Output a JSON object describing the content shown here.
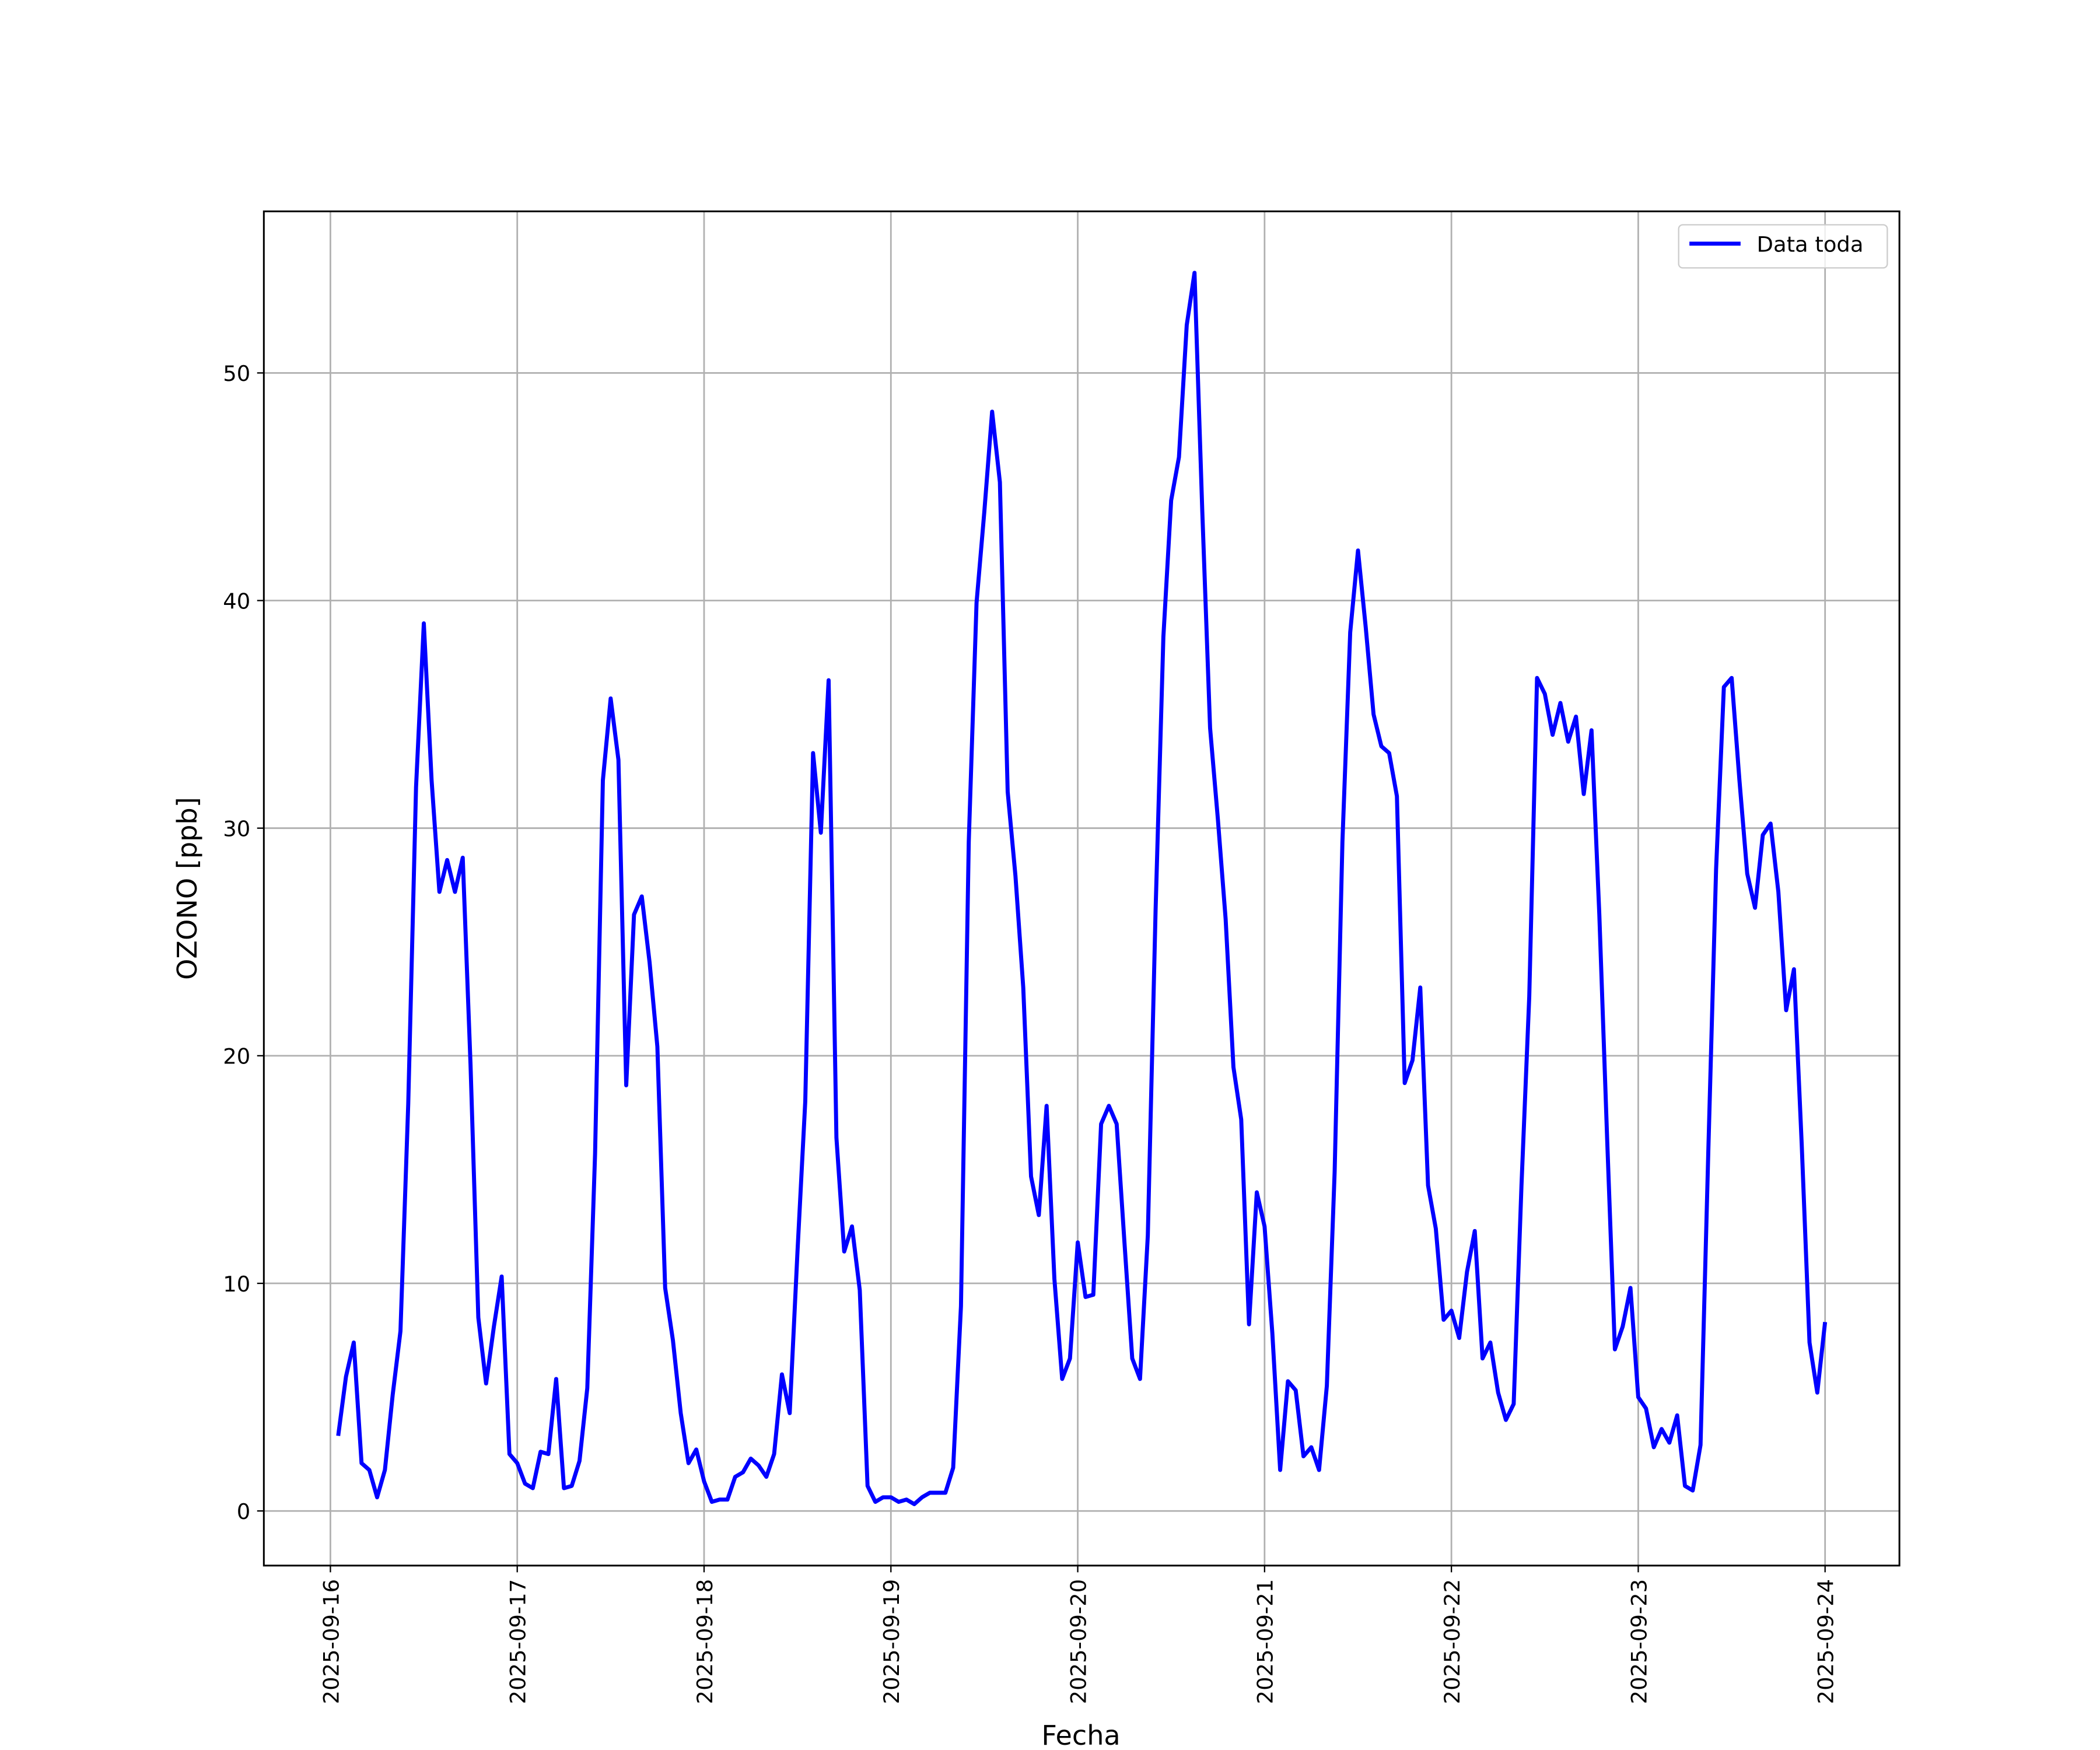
{
  "chart_data": {
    "type": "line",
    "xlabel": "Fecha",
    "ylabel": "OZONO [ppb]",
    "x": [
      "2025-09-16 01:00",
      "2025-09-16 02:00",
      "2025-09-16 03:00",
      "2025-09-16 04:00",
      "2025-09-16 05:00",
      "2025-09-16 06:00",
      "2025-09-16 07:00",
      "2025-09-16 08:00",
      "2025-09-16 09:00",
      "2025-09-16 10:00",
      "2025-09-16 11:00",
      "2025-09-16 12:00",
      "2025-09-16 13:00",
      "2025-09-16 14:00",
      "2025-09-16 15:00",
      "2025-09-16 16:00",
      "2025-09-16 17:00",
      "2025-09-16 18:00",
      "2025-09-16 19:00",
      "2025-09-16 20:00",
      "2025-09-16 21:00",
      "2025-09-16 22:00",
      "2025-09-16 23:00",
      "2025-09-17 00:00",
      "2025-09-17 01:00",
      "2025-09-17 02:00",
      "2025-09-17 03:00",
      "2025-09-17 04:00",
      "2025-09-17 05:00",
      "2025-09-17 06:00",
      "2025-09-17 07:00",
      "2025-09-17 08:00",
      "2025-09-17 09:00",
      "2025-09-17 10:00",
      "2025-09-17 11:00",
      "2025-09-17 12:00",
      "2025-09-17 13:00",
      "2025-09-17 14:00",
      "2025-09-17 15:00",
      "2025-09-17 16:00",
      "2025-09-17 17:00",
      "2025-09-17 18:00",
      "2025-09-17 19:00",
      "2025-09-17 20:00",
      "2025-09-17 21:00",
      "2025-09-17 22:00",
      "2025-09-17 23:00",
      "2025-09-18 00:00",
      "2025-09-18 01:00",
      "2025-09-18 02:00",
      "2025-09-18 03:00",
      "2025-09-18 04:00",
      "2025-09-18 05:00",
      "2025-09-18 06:00",
      "2025-09-18 07:00",
      "2025-09-18 08:00",
      "2025-09-18 09:00",
      "2025-09-18 10:00",
      "2025-09-18 11:00",
      "2025-09-18 12:00",
      "2025-09-18 13:00",
      "2025-09-18 14:00",
      "2025-09-18 15:00",
      "2025-09-18 16:00",
      "2025-09-18 17:00",
      "2025-09-18 18:00",
      "2025-09-18 19:00",
      "2025-09-18 20:00",
      "2025-09-18 21:00",
      "2025-09-18 22:00",
      "2025-09-18 23:00",
      "2025-09-19 00:00",
      "2025-09-19 01:00",
      "2025-09-19 02:00",
      "2025-09-19 03:00",
      "2025-09-19 04:00",
      "2025-09-19 05:00",
      "2025-09-19 06:00",
      "2025-09-19 07:00",
      "2025-09-19 08:00",
      "2025-09-19 09:00",
      "2025-09-19 10:00",
      "2025-09-19 11:00",
      "2025-09-19 12:00",
      "2025-09-19 13:00",
      "2025-09-19 14:00",
      "2025-09-19 15:00",
      "2025-09-19 16:00",
      "2025-09-19 17:00",
      "2025-09-19 18:00",
      "2025-09-19 19:00",
      "2025-09-19 20:00",
      "2025-09-19 21:00",
      "2025-09-19 22:00",
      "2025-09-19 23:00",
      "2025-09-20 00:00",
      "2025-09-20 01:00",
      "2025-09-20 02:00",
      "2025-09-20 03:00",
      "2025-09-20 04:00",
      "2025-09-20 05:00",
      "2025-09-20 06:00",
      "2025-09-20 07:00",
      "2025-09-20 08:00",
      "2025-09-20 09:00",
      "2025-09-20 10:00",
      "2025-09-20 11:00",
      "2025-09-20 12:00",
      "2025-09-20 13:00",
      "2025-09-20 14:00",
      "2025-09-20 15:00",
      "2025-09-20 16:00",
      "2025-09-20 17:00",
      "2025-09-20 18:00",
      "2025-09-20 19:00",
      "2025-09-20 20:00",
      "2025-09-20 21:00",
      "2025-09-20 22:00",
      "2025-09-20 23:00",
      "2025-09-21 00:00",
      "2025-09-21 01:00",
      "2025-09-21 02:00",
      "2025-09-21 03:00",
      "2025-09-21 04:00",
      "2025-09-21 05:00",
      "2025-09-21 06:00",
      "2025-09-21 07:00",
      "2025-09-21 08:00",
      "2025-09-21 09:00",
      "2025-09-21 10:00",
      "2025-09-21 11:00",
      "2025-09-21 12:00",
      "2025-09-21 13:00",
      "2025-09-21 14:00",
      "2025-09-21 15:00",
      "2025-09-21 16:00",
      "2025-09-21 17:00",
      "2025-09-21 18:00",
      "2025-09-21 19:00",
      "2025-09-21 20:00",
      "2025-09-21 21:00",
      "2025-09-21 22:00",
      "2025-09-21 23:00",
      "2025-09-22 00:00",
      "2025-09-22 01:00",
      "2025-09-22 02:00",
      "2025-09-22 03:00",
      "2025-09-22 04:00",
      "2025-09-22 05:00",
      "2025-09-22 06:00",
      "2025-09-22 07:00",
      "2025-09-22 08:00",
      "2025-09-22 09:00",
      "2025-09-22 10:00",
      "2025-09-22 11:00",
      "2025-09-22 12:00",
      "2025-09-22 13:00",
      "2025-09-22 14:00",
      "2025-09-22 15:00",
      "2025-09-22 16:00",
      "2025-09-22 17:00",
      "2025-09-22 18:00",
      "2025-09-22 19:00",
      "2025-09-22 20:00",
      "2025-09-22 21:00",
      "2025-09-22 22:00",
      "2025-09-22 23:00",
      "2025-09-23 00:00",
      "2025-09-23 01:00",
      "2025-09-23 02:00",
      "2025-09-23 03:00",
      "2025-09-23 04:00",
      "2025-09-23 05:00",
      "2025-09-23 06:00",
      "2025-09-23 07:00",
      "2025-09-23 08:00",
      "2025-09-23 09:00",
      "2025-09-23 10:00",
      "2025-09-23 11:00",
      "2025-09-23 12:00",
      "2025-09-23 13:00",
      "2025-09-23 14:00",
      "2025-09-23 15:00",
      "2025-09-23 16:00",
      "2025-09-23 17:00",
      "2025-09-23 18:00",
      "2025-09-23 19:00",
      "2025-09-23 20:00",
      "2025-09-23 21:00",
      "2025-09-23 22:00",
      "2025-09-23 23:00",
      "2025-09-24 00:00"
    ],
    "series": [
      {
        "name": "Data toda",
        "color": "#0000ff",
        "values": [
          3.3,
          5.9,
          7.4,
          2.1,
          1.8,
          0.6,
          1.8,
          5.1,
          7.9,
          17.9,
          31.8,
          39.0,
          32.1,
          27.2,
          28.6,
          27.2,
          28.7,
          19.6,
          8.5,
          5.6,
          8.1,
          10.3,
          2.5,
          2.1,
          1.2,
          1.0,
          2.6,
          2.5,
          5.8,
          1.0,
          1.1,
          2.2,
          5.4,
          15.7,
          32.1,
          35.7,
          33.0,
          18.7,
          26.2,
          27.0,
          24.1,
          20.4,
          9.8,
          7.5,
          4.3,
          2.1,
          2.7,
          1.3,
          0.4,
          0.5,
          0.5,
          1.5,
          1.7,
          2.3,
          2.0,
          1.5,
          2.5,
          6.0,
          4.3,
          11.4,
          18.0,
          33.3,
          29.8,
          36.5,
          16.4,
          11.4,
          12.5,
          9.7,
          1.1,
          0.4,
          0.6,
          0.6,
          0.4,
          0.5,
          0.3,
          0.6,
          0.8,
          0.8,
          0.8,
          1.9,
          9.0,
          29.4,
          39.9,
          43.9,
          48.3,
          45.2,
          31.6,
          27.9,
          23.0,
          14.7,
          13.0,
          17.8,
          10.2,
          5.8,
          6.7,
          11.8,
          9.4,
          9.5,
          17.0,
          17.8,
          17.0,
          11.8,
          6.7,
          5.8,
          12.1,
          26.4,
          38.4,
          44.4,
          46.3,
          52.1,
          54.4,
          43.9,
          34.4,
          30.4,
          26.0,
          19.5,
          17.2,
          8.2,
          14.0,
          12.5,
          7.8,
          1.8,
          5.7,
          5.3,
          2.4,
          2.8,
          1.8,
          5.5,
          14.9,
          29.4,
          38.6,
          42.2,
          38.8,
          35.0,
          33.6,
          33.3,
          31.4,
          18.8,
          19.8,
          23.0,
          14.3,
          12.4,
          8.4,
          8.8,
          7.6,
          10.5,
          12.3,
          6.7,
          7.4,
          5.2,
          4.0,
          4.7,
          14.3,
          22.6,
          36.6,
          35.9,
          34.1,
          35.5,
          33.8,
          34.9,
          31.5,
          34.3,
          26.2,
          16.4,
          7.1,
          8.1,
          9.8,
          5.0,
          4.5,
          2.8,
          3.6,
          3.0,
          4.2,
          1.1,
          0.9,
          2.9,
          15.8,
          28.2,
          36.2,
          36.6,
          32.1,
          28.0,
          26.5,
          29.7,
          30.2,
          27.2,
          22.0,
          23.8,
          16.1,
          7.4,
          5.2,
          8.3
        ]
      }
    ],
    "xlim": [
      "2025-09-15 15:27",
      "2025-09-24 09:33"
    ],
    "xticks": [
      "2025-09-16",
      "2025-09-17",
      "2025-09-18",
      "2025-09-19",
      "2025-09-20",
      "2025-09-21",
      "2025-09-22",
      "2025-09-23",
      "2025-09-24"
    ],
    "ylim": [
      -2.4,
      57.1
    ],
    "yticks": [
      0,
      10,
      20,
      30,
      40,
      50
    ],
    "grid": true,
    "legend": "upper right"
  }
}
